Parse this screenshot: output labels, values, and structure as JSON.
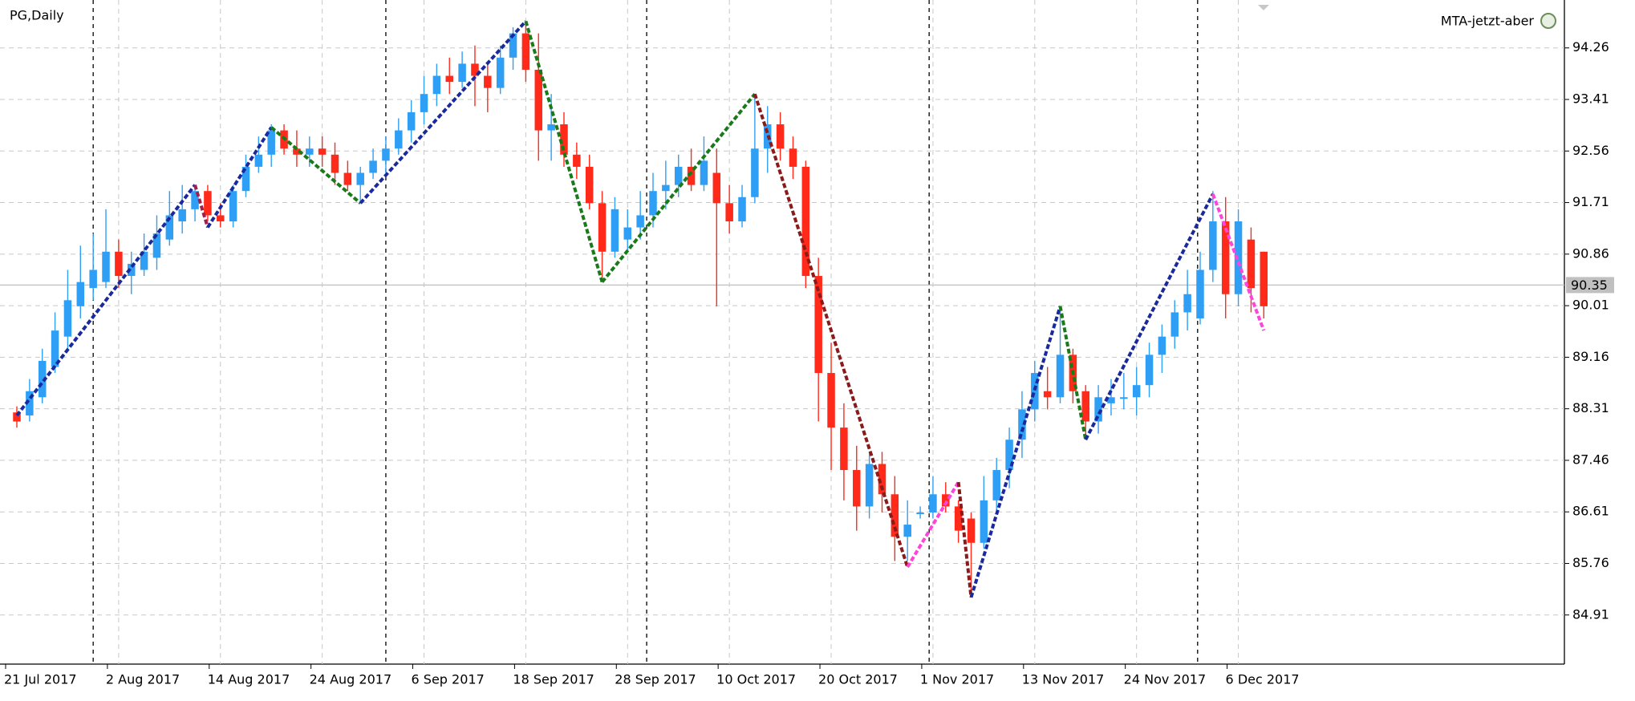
{
  "chart_data": {
    "type": "candlestick",
    "title": "PG,Daily",
    "indicator": "MTA-jetzt-aber",
    "categories": [
      "21 Jul 2017",
      null,
      null,
      null,
      null,
      null,
      null,
      null,
      "2 Aug 2017",
      null,
      null,
      null,
      null,
      null,
      null,
      null,
      "14 Aug 2017",
      null,
      null,
      null,
      null,
      null,
      null,
      null,
      "24 Aug 2017",
      null,
      null,
      null,
      null,
      null,
      null,
      null,
      "6 Sep 2017",
      null,
      null,
      null,
      null,
      null,
      null,
      null,
      "18 Sep 2017",
      null,
      null,
      null,
      null,
      null,
      null,
      null,
      "28 Sep 2017",
      null,
      null,
      null,
      null,
      null,
      null,
      null,
      "10 Oct 2017",
      null,
      null,
      null,
      null,
      null,
      null,
      null,
      "20 Oct 2017",
      null,
      null,
      null,
      null,
      null,
      null,
      null,
      "1 Nov 2017",
      null,
      null,
      null,
      null,
      null,
      null,
      null,
      "13 Nov 2017",
      null,
      null,
      null,
      null,
      null,
      null,
      null,
      "24 Nov 2017",
      null,
      null,
      null,
      null,
      null,
      null,
      null,
      "6 Dec 2017",
      null,
      null
    ],
    "open": [
      88.25,
      88.2,
      88.5,
      89.0,
      89.5,
      90.0,
      90.3,
      90.4,
      90.9,
      90.5,
      90.6,
      90.8,
      91.1,
      91.4,
      91.6,
      91.9,
      91.5,
      91.4,
      91.9,
      92.3,
      92.5,
      92.9,
      92.6,
      92.5,
      92.6,
      92.5,
      92.2,
      92.0,
      92.2,
      92.4,
      92.6,
      92.9,
      93.2,
      93.5,
      93.8,
      93.7,
      94.0,
      93.8,
      93.6,
      94.1,
      94.5,
      93.9,
      92.9,
      93.0,
      92.5,
      92.3,
      91.7,
      90.9,
      91.1,
      91.3,
      91.5,
      91.9,
      92.0,
      92.3,
      92.0,
      92.2,
      91.7,
      91.4,
      91.8,
      92.6,
      93.0,
      92.6,
      92.3,
      90.5,
      88.9,
      88.0,
      87.3,
      86.7,
      87.4,
      86.9,
      86.2,
      86.6,
      86.6,
      86.9,
      86.7,
      86.5,
      86.1,
      86.8,
      87.3,
      87.8,
      88.3,
      88.6,
      88.5,
      89.2,
      88.6,
      88.1,
      88.4,
      88.5,
      88.5,
      88.7,
      89.2,
      89.5,
      89.9,
      89.8,
      90.6,
      91.4,
      90.2,
      91.1,
      90.9
    ],
    "high": [
      88.35,
      88.8,
      89.3,
      89.9,
      90.6,
      91.0,
      91.2,
      91.6,
      91.1,
      90.9,
      91.2,
      91.5,
      91.9,
      92.0,
      92.0,
      92.0,
      91.7,
      92.0,
      92.5,
      92.8,
      93.0,
      93.0,
      92.9,
      92.8,
      92.8,
      92.7,
      92.4,
      92.3,
      92.6,
      92.8,
      93.1,
      93.4,
      93.8,
      94.0,
      94.1,
      94.2,
      94.3,
      94.0,
      94.3,
      94.6,
      94.7,
      94.5,
      93.5,
      93.2,
      92.7,
      92.5,
      91.9,
      91.8,
      91.6,
      91.9,
      92.2,
      92.4,
      92.5,
      92.6,
      92.8,
      92.6,
      92.0,
      92.0,
      93.5,
      93.3,
      93.2,
      92.8,
      92.4,
      90.8,
      89.4,
      88.4,
      87.7,
      87.6,
      87.6,
      87.2,
      86.8,
      86.7,
      87.2,
      87.1,
      86.8,
      86.6,
      87.2,
      87.5,
      88.0,
      88.6,
      89.1,
      89.0,
      90.0,
      89.3,
      88.7,
      88.7,
      88.8,
      88.9,
      89.0,
      89.4,
      89.7,
      90.1,
      90.6,
      90.9,
      91.9,
      91.8,
      91.6,
      91.3,
      90.9
    ],
    "low": [
      88.0,
      88.1,
      88.4,
      88.9,
      89.3,
      89.8,
      90.1,
      90.3,
      90.3,
      90.2,
      90.5,
      90.6,
      91.0,
      91.2,
      91.4,
      91.4,
      91.3,
      91.3,
      91.8,
      92.2,
      92.3,
      92.5,
      92.3,
      92.3,
      92.3,
      92.0,
      91.9,
      91.7,
      92.1,
      92.2,
      92.5,
      92.7,
      93.0,
      93.3,
      93.5,
      93.6,
      93.3,
      93.2,
      93.5,
      93.9,
      93.7,
      92.4,
      92.4,
      92.3,
      92.1,
      91.6,
      90.4,
      90.8,
      90.9,
      91.1,
      91.3,
      91.6,
      91.8,
      91.9,
      91.9,
      90.0,
      91.2,
      91.3,
      91.7,
      92.2,
      92.4,
      92.1,
      90.3,
      88.1,
      87.3,
      86.8,
      86.3,
      86.5,
      86.6,
      85.8,
      85.8,
      86.5,
      86.5,
      86.6,
      86.1,
      85.3,
      86.0,
      86.6,
      87.0,
      87.5,
      88.1,
      88.3,
      88.4,
      88.4,
      87.8,
      87.9,
      88.2,
      88.3,
      88.2,
      88.5,
      88.9,
      89.3,
      89.6,
      89.7,
      90.4,
      89.8,
      90.0,
      89.9,
      89.8
    ],
    "close": [
      88.1,
      88.6,
      89.1,
      89.6,
      90.1,
      90.4,
      90.6,
      90.9,
      90.5,
      90.7,
      90.9,
      91.2,
      91.5,
      91.6,
      91.9,
      91.5,
      91.4,
      91.9,
      92.3,
      92.5,
      92.9,
      92.6,
      92.5,
      92.6,
      92.5,
      92.2,
      92.0,
      92.2,
      92.4,
      92.6,
      92.9,
      93.2,
      93.5,
      93.8,
      93.7,
      94.0,
      93.8,
      93.6,
      94.1,
      94.5,
      93.9,
      92.9,
      93.0,
      92.5,
      92.3,
      91.7,
      90.9,
      91.6,
      91.3,
      91.5,
      91.9,
      92.0,
      92.3,
      92.0,
      92.4,
      91.7,
      91.4,
      91.8,
      92.6,
      93.0,
      92.6,
      92.3,
      90.5,
      88.9,
      88.0,
      87.3,
      86.7,
      87.4,
      86.9,
      86.2,
      86.4,
      86.6,
      86.9,
      86.7,
      86.3,
      86.1,
      86.8,
      87.3,
      87.8,
      88.3,
      88.9,
      88.5,
      89.2,
      88.6,
      88.1,
      88.5,
      88.5,
      88.5,
      88.7,
      89.2,
      89.5,
      89.9,
      90.2,
      90.6,
      91.4,
      90.2,
      91.4,
      90.3,
      90.0
    ],
    "up_color": "#2f9ff5",
    "down_color": "#ff2a1a",
    "ylim": [
      84.1,
      95.05
    ],
    "yticks": [
      84.91,
      85.76,
      86.61,
      87.46,
      88.31,
      89.16,
      90.01,
      90.86,
      91.71,
      92.56,
      93.41,
      94.26
    ],
    "grid": true,
    "last_price": 90.35,
    "last_price_color": "#c0c0c0",
    "period_separators": [
      6,
      29,
      49.5,
      71.7,
      92.8
    ],
    "zigzag": {
      "x": [
        0,
        14,
        15,
        20,
        27,
        40,
        46,
        58,
        70,
        74,
        75,
        82,
        84,
        94,
        98
      ],
      "y": [
        88.2,
        92.0,
        91.3,
        92.95,
        91.7,
        94.7,
        90.4,
        93.5,
        85.7,
        87.1,
        85.2,
        90.0,
        87.8,
        91.85,
        89.6
      ],
      "colors": [
        "#1a2a9c",
        "#a0204a",
        "#1a2a9c",
        "#1a7a1a",
        "#1a2a9c",
        "#1a7a1a",
        "#1a7a1a",
        "#8b1a1a",
        "#ff44dd",
        "#8b1a1a",
        "#1a2a9c",
        "#1a7a1a",
        "#1a2a9c",
        "#ff44dd"
      ]
    }
  }
}
